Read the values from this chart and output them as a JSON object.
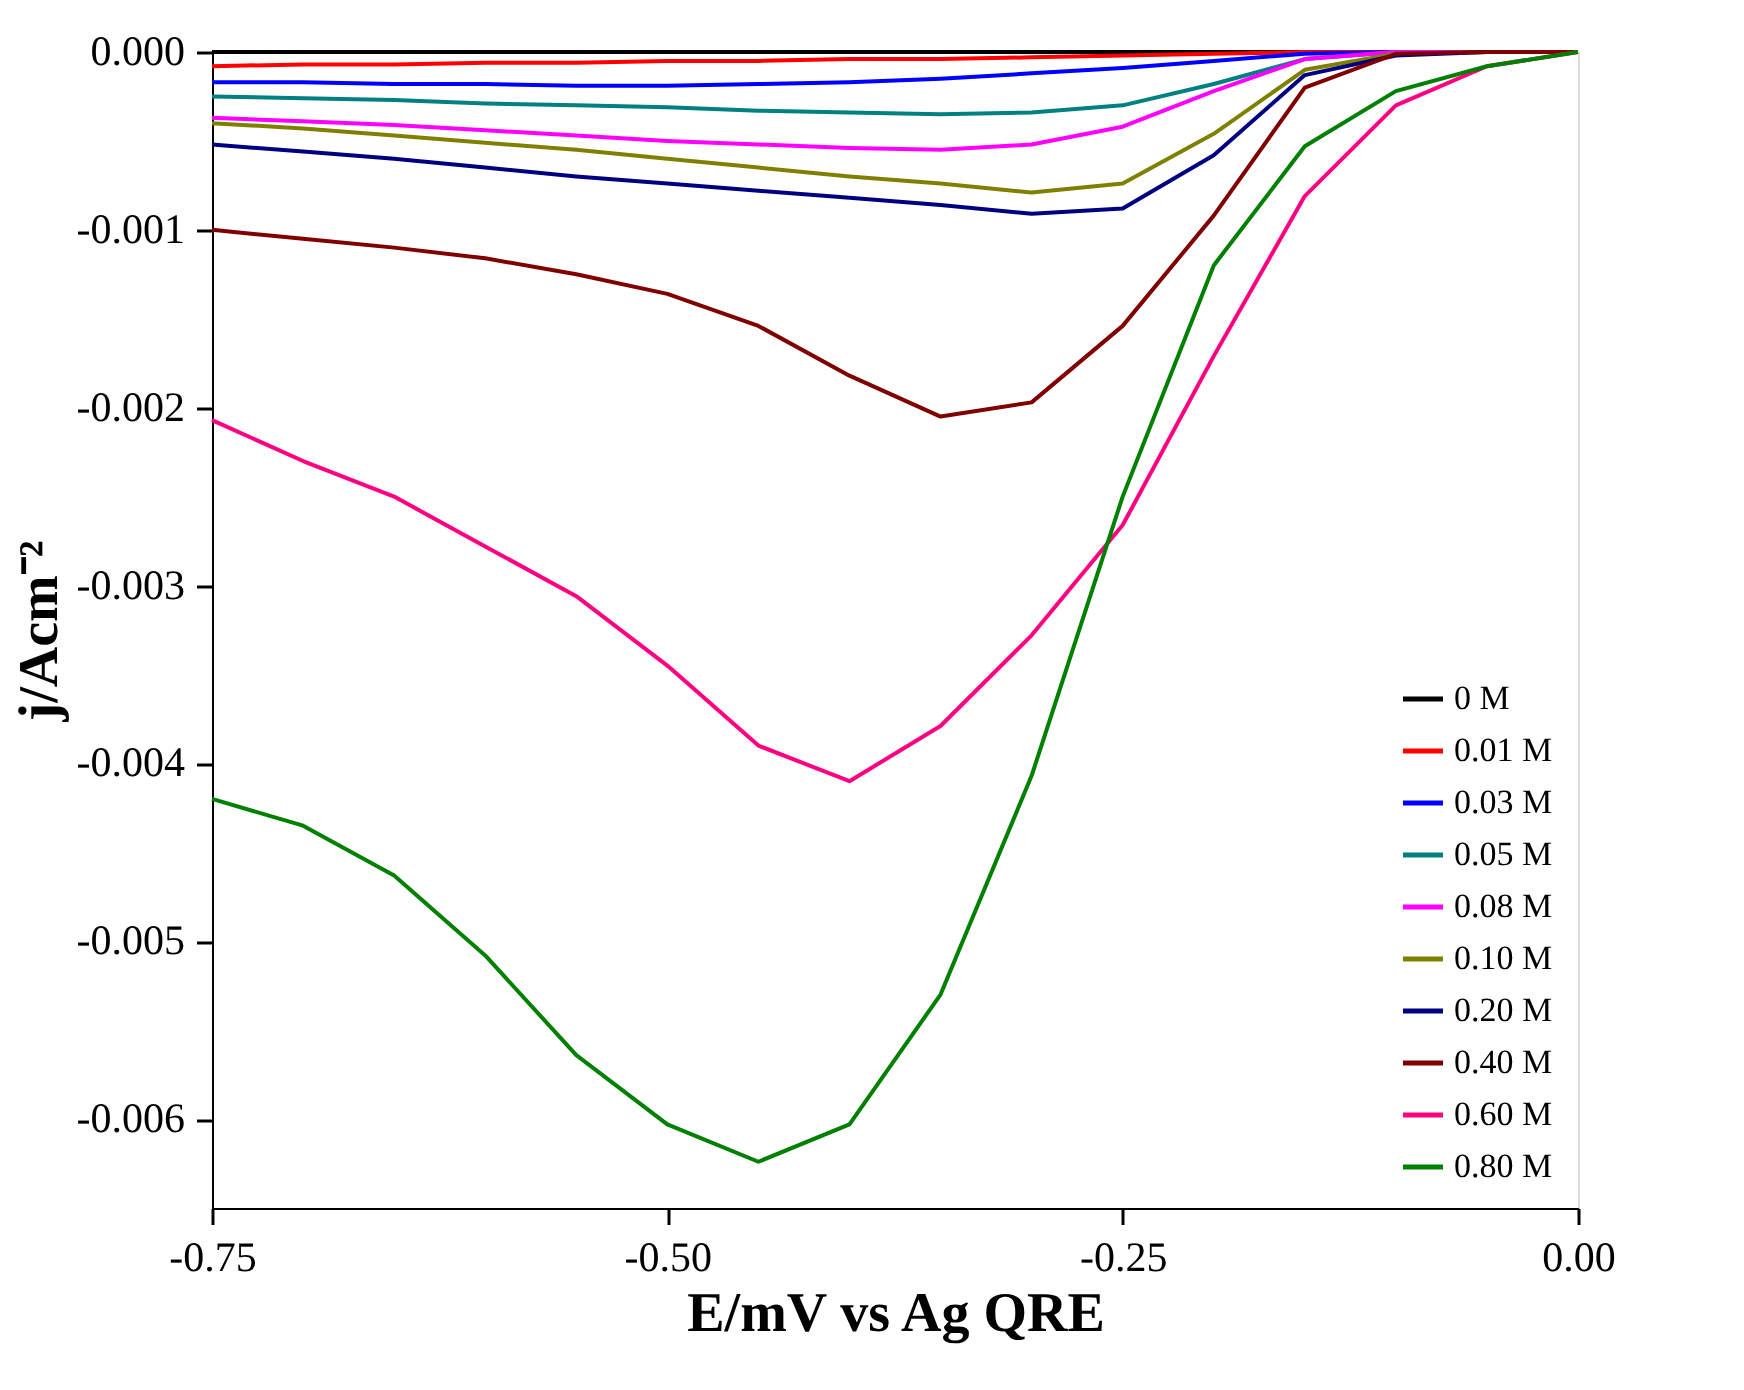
{
  "chart_data": {
    "type": "line",
    "xlabel": "E/mV vs Ag QRE",
    "ylabel": "j/Acm⁻²",
    "x": [
      -0.75,
      -0.7,
      -0.65,
      -0.6,
      -0.55,
      -0.5,
      -0.45,
      -0.4,
      -0.35,
      -0.3,
      -0.25,
      -0.2,
      -0.15,
      -0.1,
      -0.05,
      0
    ],
    "series": [
      {
        "name": "0 M",
        "color": "#000000",
        "values": [
          0,
          0,
          0,
          0,
          0,
          0,
          0,
          0,
          0,
          0,
          0,
          0,
          0,
          0,
          0,
          0
        ]
      },
      {
        "name": "0.01 M",
        "color": "#ff0000",
        "values": [
          -8e-05,
          -7e-05,
          -7e-05,
          -6e-05,
          -6e-05,
          -5e-05,
          -5e-05,
          -4e-05,
          -4e-05,
          -3e-05,
          -2e-05,
          -1e-05,
          0,
          0,
          0,
          0
        ]
      },
      {
        "name": "0.03 M",
        "color": "#0000ff",
        "values": [
          -0.00017,
          -0.00017,
          -0.00018,
          -0.00018,
          -0.00019,
          -0.00019,
          -0.00018,
          -0.00017,
          -0.00015,
          -0.00012,
          -9e-05,
          -5e-05,
          -1e-05,
          0,
          0,
          0
        ]
      },
      {
        "name": "0.05 M",
        "color": "#008080",
        "values": [
          -0.00025,
          -0.00026,
          -0.00027,
          -0.00029,
          -0.0003,
          -0.00031,
          -0.00033,
          -0.00034,
          -0.00035,
          -0.00034,
          -0.0003,
          -0.00018,
          -4e-05,
          0,
          null,
          null
        ]
      },
      {
        "name": "0.08 M",
        "color": "#ff00ff",
        "values": [
          -0.00037,
          -0.00039,
          -0.00041,
          -0.00044,
          -0.00047,
          -0.0005,
          -0.00052,
          -0.00054,
          -0.00055,
          -0.00052,
          -0.00042,
          -0.00022,
          -4e-05,
          0,
          0,
          0
        ]
      },
      {
        "name": "0.10 M",
        "color": "#808000",
        "values": [
          -0.0004,
          -0.00043,
          -0.00047,
          -0.00051,
          -0.00055,
          -0.0006,
          -0.00065,
          -0.0007,
          -0.00074,
          -0.00079,
          -0.00074,
          -0.00046,
          -0.0001,
          -1e-05,
          0,
          0
        ]
      },
      {
        "name": "0.20 M",
        "color": "#000080",
        "values": [
          -0.00052,
          -0.00056,
          -0.0006,
          -0.00065,
          -0.0007,
          -0.00074,
          -0.00078,
          -0.00082,
          -0.00086,
          -0.00091,
          -0.00088,
          -0.00058,
          -0.00013,
          -2e-05,
          0,
          0
        ]
      },
      {
        "name": "0.40 M",
        "color": "#800000",
        "values": [
          -0.001,
          -0.00105,
          -0.0011,
          -0.00116,
          -0.00125,
          -0.00136,
          -0.00154,
          -0.00182,
          -0.00205,
          -0.00197,
          -0.00154,
          -0.00092,
          -0.0002,
          -1e-05,
          0,
          0
        ]
      },
      {
        "name": "0.60 M",
        "color": "#ff0080",
        "values": [
          -0.00207,
          -0.0023,
          -0.0025,
          -0.00278,
          -0.00306,
          -0.00345,
          -0.0039,
          -0.0041,
          -0.00379,
          -0.00328,
          -0.00266,
          -0.00171,
          -0.00081,
          -0.0003,
          -8e-05,
          0
        ]
      },
      {
        "name": "0.80 M",
        "color": "#008000",
        "values": [
          -0.0042,
          -0.00435,
          -0.00463,
          -0.00508,
          -0.00564,
          -0.00603,
          -0.00624,
          -0.00603,
          -0.0053,
          -0.00407,
          -0.0025,
          -0.0012,
          -0.00053,
          -0.00022,
          -8e-05,
          0
        ]
      }
    ],
    "xlim": [
      -0.75,
      0
    ],
    "ylim": [
      -0.0065,
      0
    ],
    "xticks": [
      {
        "value": -0.75,
        "label": "-0.75"
      },
      {
        "value": -0.5,
        "label": "-0.50"
      },
      {
        "value": -0.25,
        "label": "-0.25"
      },
      {
        "value": 0,
        "label": "0.00"
      }
    ],
    "yticks": [
      {
        "value": 0,
        "label": "0.000"
      },
      {
        "value": -0.001,
        "label": "-0.001"
      },
      {
        "value": -0.002,
        "label": "-0.002"
      },
      {
        "value": -0.003,
        "label": "-0.003"
      },
      {
        "value": -0.004,
        "label": "-0.004"
      },
      {
        "value": -0.005,
        "label": "-0.005"
      },
      {
        "value": -0.006,
        "label": "-0.006"
      }
    ],
    "legend": "bottom right",
    "grid": false,
    "line_style": "solid",
    "marker": "none"
  }
}
